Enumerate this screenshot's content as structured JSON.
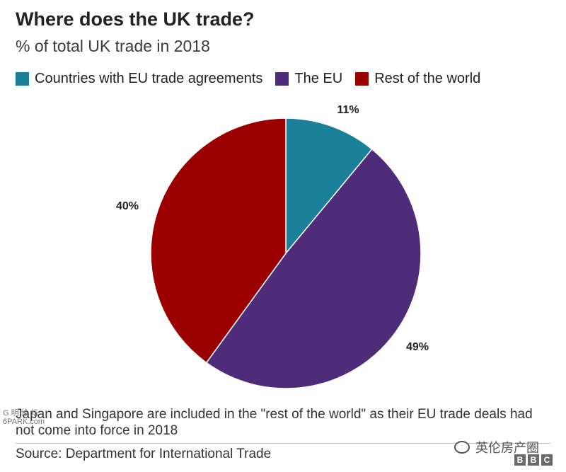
{
  "header": {
    "title": "Where does the UK trade?",
    "subtitle": "% of total UK trade in 2018"
  },
  "legend": [
    {
      "label": "Countries with EU trade agreements",
      "color": "#1a7f99"
    },
    {
      "label": "The EU",
      "color": "#4e2c7a"
    },
    {
      "label": "Rest of the world",
      "color": "#9b0000"
    }
  ],
  "chart_data": {
    "type": "pie",
    "title": "Where does the UK trade?",
    "subtitle": "% of total UK trade in 2018",
    "legend_position": "top",
    "slices": [
      {
        "label": "Countries with EU trade agreements",
        "value": 11,
        "value_label": "11%",
        "color": "#1a7f99"
      },
      {
        "label": "The EU",
        "value": 49,
        "value_label": "49%",
        "color": "#4e2c7a"
      },
      {
        "label": "Rest of the world",
        "value": 40,
        "value_label": "40%",
        "color": "#9b0000"
      }
    ]
  },
  "footer": {
    "note": "Japan and Singapore are included in the \"rest of the world\" as their EU trade deals had not come into force in 2018",
    "source": "Source: Department for International Trade",
    "watermark_left_line1": "G 明 论 坛",
    "watermark_left_line2": "6PARK.com",
    "watermark_right": "英伦房产圈",
    "logo_letters": [
      "B",
      "B",
      "C"
    ]
  },
  "icons": {
    "watermark_right": "wechat-icon"
  }
}
